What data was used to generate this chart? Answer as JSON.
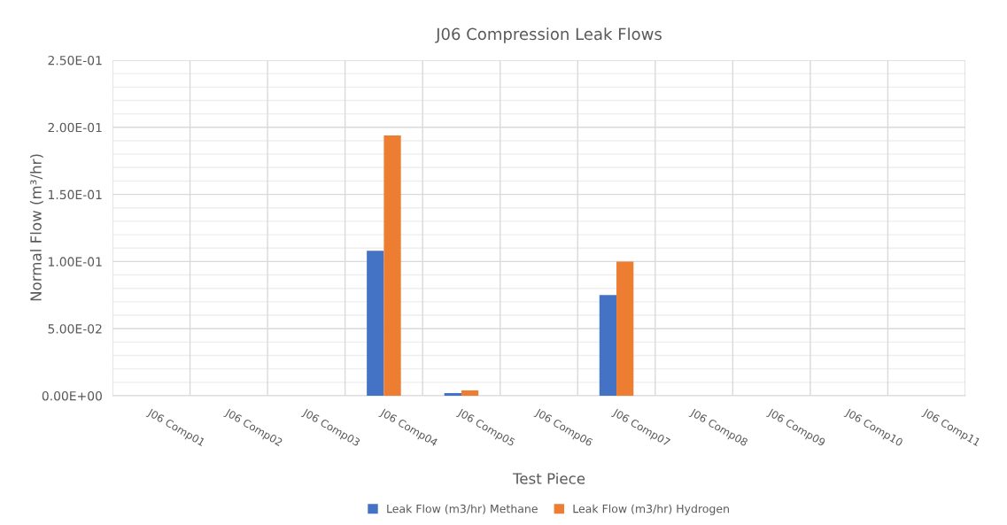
{
  "chart_data": {
    "type": "bar",
    "title": "J06 Compression Leak Flows",
    "xlabel": "Test Piece",
    "ylabel": "Normal Flow (m³/hr)",
    "categories": [
      "J06 Comp01",
      "J06 Comp02",
      "J06 Comp03",
      "J06 Comp04",
      "J06 Comp05",
      "J06 Comp06",
      "J06 Comp07",
      "J06 Comp08",
      "J06 Comp09",
      "J06 Comp10",
      "J06 Comp11"
    ],
    "series": [
      {
        "name": "Leak Flow (m3/hr) Methane",
        "color": "#4472c4",
        "values": [
          0,
          0,
          0,
          0.108,
          0.002,
          0,
          0.075,
          0,
          0,
          0,
          0
        ]
      },
      {
        "name": "Leak Flow (m3/hr) Hydrogen",
        "color": "#ed7d31",
        "values": [
          0,
          0,
          0,
          0.194,
          0.004,
          0,
          0.1,
          0,
          0,
          0,
          0
        ]
      }
    ],
    "ylim": [
      0,
      0.25
    ],
    "yticks": [
      {
        "value": 0,
        "label": "0.00E+00"
      },
      {
        "value": 0.01,
        "label": null
      },
      {
        "value": 0.02,
        "label": null
      },
      {
        "value": 0.03,
        "label": null
      },
      {
        "value": 0.04,
        "label": null
      },
      {
        "value": 0.05,
        "label": "5.00E-02"
      },
      {
        "value": 0.06,
        "label": null
      },
      {
        "value": 0.07,
        "label": null
      },
      {
        "value": 0.08,
        "label": null
      },
      {
        "value": 0.09,
        "label": null
      },
      {
        "value": 0.1,
        "label": "1.00E-01"
      },
      {
        "value": 0.11,
        "label": null
      },
      {
        "value": 0.12,
        "label": null
      },
      {
        "value": 0.13,
        "label": null
      },
      {
        "value": 0.14,
        "label": null
      },
      {
        "value": 0.15,
        "label": "1.50E-01"
      },
      {
        "value": 0.16,
        "label": null
      },
      {
        "value": 0.17,
        "label": null
      },
      {
        "value": 0.18,
        "label": null
      },
      {
        "value": 0.19,
        "label": null
      },
      {
        "value": 0.2,
        "label": "2.00E-01"
      },
      {
        "value": 0.21,
        "label": null
      },
      {
        "value": 0.22,
        "label": null
      },
      {
        "value": 0.23,
        "label": null
      },
      {
        "value": 0.24,
        "label": null
      },
      {
        "value": 0.25,
        "label": "2.50E-01"
      }
    ],
    "grid": true,
    "legend": "bottom"
  }
}
